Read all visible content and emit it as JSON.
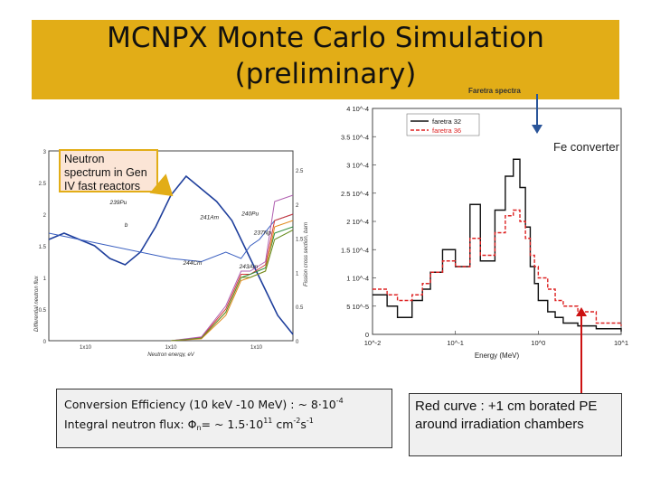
{
  "slide": {
    "title_line1": "MCNPX Monte Carlo Simulation",
    "title_line2": "(preliminary)",
    "faretra_caption": "Faretra spectra",
    "callout": "Neutron spectrum in Gen IV fast reactors",
    "fe_note": "Fe converter",
    "conversion_prefix": "Conversion Efficiency (10 keV -10 MeV) : ~ 8·10",
    "conversion_exp": "-4",
    "flux_prefix": "Integral neutron flux: Φ",
    "flux_sub": "n",
    "flux_mid": "= ~ 1.5·10",
    "flux_exp": "11",
    "flux_unit": " cm",
    "flux_unit_exp1": "-2",
    "flux_unit_s": "s",
    "flux_unit_exp2": "-1",
    "red_curve_note": "Red curve : +1 cm borated PE around irradiation chambers",
    "colors": {
      "title_band": "#e2ad17",
      "callout_bg": "#fbe5d6",
      "arrow_red": "#cc1111",
      "arrow_blue": "#2a5599",
      "box_bg": "#f0f0f0"
    }
  },
  "chart_data": [
    {
      "type": "line",
      "title": "",
      "xlabel": "Neutron energy, eV",
      "ylabel": "Differential neutron flux",
      "y2label": "Fission cross section, barn",
      "x_scale": "log",
      "x_ticks": [
        "1x10",
        "1x10",
        "1x10"
      ],
      "y_ticks": [
        "0",
        "0.5",
        "1",
        "1.5",
        "2",
        "2.5",
        "3"
      ],
      "y2_ticks": [
        "0",
        "0.5",
        "1",
        "1.5",
        "2",
        "2.5"
      ],
      "annotations": [
        "239Pu",
        "241Am",
        "240Pu",
        "237Np",
        "244Cm",
        "243Am",
        "b"
      ],
      "series": [
        {
          "name": "Neutron spectrum",
          "color": "#1f3f9c",
          "x": [
            1,
            1.5,
            2,
            2.5,
            3,
            3.5,
            4,
            4.5,
            5,
            5.5,
            6,
            6.5,
            7,
            7.5,
            8,
            8.5,
            9
          ],
          "values": [
            1.6,
            1.7,
            1.6,
            1.5,
            1.3,
            1.2,
            1.4,
            1.8,
            2.3,
            2.6,
            2.4,
            2.2,
            1.9,
            1.4,
            0.9,
            0.4,
            0.1
          ]
        },
        {
          "name": "239Pu",
          "color": "#3a5fc0",
          "x": [
            1,
            3,
            5,
            6,
            6.8,
            7.3,
            7.6,
            7.9,
            8.4,
            9
          ],
          "values": [
            1.7,
            1.5,
            1.3,
            1.25,
            1.4,
            1.3,
            1.5,
            1.6,
            1.9,
            2.0
          ]
        },
        {
          "name": "241Am",
          "color": "#d23a3a",
          "x": [
            5,
            6,
            6.8,
            7.3,
            7.6,
            8.1,
            8.4,
            9
          ],
          "values": [
            0.0,
            0.05,
            0.5,
            1.05,
            1.05,
            1.2,
            1.9,
            2.0
          ]
        },
        {
          "name": "240Pu",
          "color": "#2f8f3a",
          "x": [
            5,
            6,
            6.8,
            7.3,
            7.6,
            8.1,
            8.4,
            9
          ],
          "values": [
            0.0,
            0.04,
            0.45,
            1.0,
            1.05,
            1.15,
            1.7,
            1.8
          ]
        },
        {
          "name": "237Np",
          "color": "#e08a1e",
          "x": [
            5,
            6,
            6.8,
            7.3,
            7.6,
            8.1,
            8.4,
            9
          ],
          "values": [
            0.0,
            0.03,
            0.4,
            0.95,
            1.0,
            1.1,
            1.8,
            1.9
          ]
        },
        {
          "name": "244Cm",
          "color": "#b05fb0",
          "x": [
            5,
            6,
            6.8,
            7.3,
            7.6,
            8.1,
            8.4,
            9
          ],
          "values": [
            0.0,
            0.06,
            0.55,
            1.1,
            1.1,
            1.25,
            2.2,
            2.3
          ]
        },
        {
          "name": "243Am",
          "color": "#6b8e23",
          "x": [
            5,
            6,
            6.8,
            7.3,
            7.6,
            8.1,
            8.4,
            9
          ],
          "values": [
            0.0,
            0.04,
            0.45,
            1.0,
            1.0,
            1.1,
            1.6,
            1.75
          ]
        }
      ]
    },
    {
      "type": "line",
      "title": "Faretra spectra",
      "xlabel": "Energy (MeV)",
      "ylabel": "",
      "x_scale": "log",
      "x_ticks": [
        "10^-2",
        "10^-1",
        "10^0",
        "10^1"
      ],
      "x_tick_values": [
        0.01,
        0.1,
        1,
        10
      ],
      "y_ticks": [
        "0",
        "5 10^-5",
        "1 10^-4",
        "1.5 10^-4",
        "2 10^-4",
        "2.5 10^-4",
        "3 10^-4",
        "3.5 10^-4",
        "4 10^-4"
      ],
      "ylim": [
        0,
        0.0004
      ],
      "legend_position": "top-left",
      "series": [
        {
          "name": "faretra 32",
          "color": "#111111",
          "x": [
            0.01,
            0.015,
            0.02,
            0.03,
            0.04,
            0.05,
            0.07,
            0.1,
            0.15,
            0.2,
            0.3,
            0.4,
            0.5,
            0.6,
            0.7,
            0.8,
            0.9,
            1,
            1.3,
            1.6,
            2,
            3,
            5,
            10
          ],
          "values": [
            7e-05,
            5e-05,
            3e-05,
            6e-05,
            8e-05,
            0.00011,
            0.00015,
            0.00012,
            0.00023,
            0.00013,
            0.00022,
            0.00028,
            0.00031,
            0.00026,
            0.00019,
            0.00012,
            9e-05,
            6e-05,
            4e-05,
            3e-05,
            2e-05,
            1.5e-05,
            1e-05,
            5e-06
          ]
        },
        {
          "name": "faretra 36",
          "color": "#dd2222",
          "x": [
            0.01,
            0.015,
            0.02,
            0.03,
            0.04,
            0.05,
            0.07,
            0.1,
            0.15,
            0.2,
            0.3,
            0.4,
            0.5,
            0.6,
            0.7,
            0.8,
            0.9,
            1,
            1.3,
            1.6,
            2,
            3,
            5,
            10
          ],
          "values": [
            8e-05,
            7e-05,
            6e-05,
            7e-05,
            9e-05,
            0.00011,
            0.00013,
            0.00012,
            0.00017,
            0.00014,
            0.00018,
            0.00021,
            0.00022,
            0.0002,
            0.00017,
            0.00014,
            0.00012,
            0.0001,
            8e-05,
            6e-05,
            5e-05,
            4e-05,
            2e-05,
            1.5e-05
          ]
        }
      ]
    }
  ]
}
